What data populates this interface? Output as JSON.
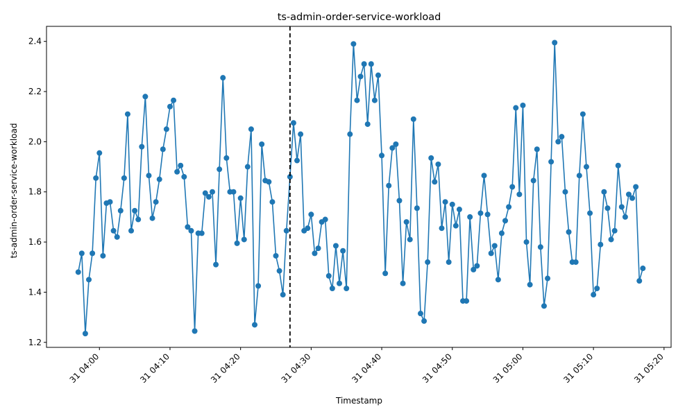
{
  "chart_data": {
    "type": "line",
    "title": "ts-admin-order-service-workload",
    "xlabel": "Timestamp",
    "ylabel": "ts-admin-order-service-workload",
    "ylim": [
      1.18,
      2.46
    ],
    "xlim": [
      "03:52:30",
      "05:21:00"
    ],
    "x_start": "03:57:00",
    "x_step_seconds": 30,
    "x_ticks": [
      {
        "time": "04:00:00",
        "label": "31 04:00"
      },
      {
        "time": "04:10:00",
        "label": "31 04:10"
      },
      {
        "time": "04:20:00",
        "label": "31 04:20"
      },
      {
        "time": "04:30:00",
        "label": "31 04:30"
      },
      {
        "time": "04:40:00",
        "label": "31 04:40"
      },
      {
        "time": "04:50:00",
        "label": "31 04:50"
      },
      {
        "time": "05:00:00",
        "label": "31 05:00"
      },
      {
        "time": "05:10:00",
        "label": "31 05:10"
      },
      {
        "time": "05:20:00",
        "label": "31 05:20"
      }
    ],
    "y_ticks": [
      1.2,
      1.4,
      1.6,
      1.8,
      2.0,
      2.2,
      2.4
    ],
    "y_tick_labels": [
      "1.2",
      "1.4",
      "1.6",
      "1.8",
      "2.0",
      "2.2",
      "2.4"
    ],
    "vline": {
      "time": "04:27:00",
      "style": "dashed",
      "color": "#000000"
    },
    "grid": false,
    "series": [
      {
        "color": "#1f77b4",
        "marker": "circle",
        "values": [
          1.48,
          1.555,
          1.235,
          1.45,
          1.555,
          1.855,
          1.955,
          1.545,
          1.755,
          1.76,
          1.645,
          1.62,
          1.725,
          1.855,
          2.11,
          1.645,
          1.725,
          1.69,
          1.98,
          2.18,
          1.865,
          1.695,
          1.76,
          1.85,
          1.97,
          2.05,
          2.14,
          2.165,
          1.88,
          1.905,
          1.86,
          1.66,
          1.645,
          1.245,
          1.635,
          1.635,
          1.795,
          1.78,
          1.8,
          1.51,
          1.89,
          2.255,
          1.935,
          1.8,
          1.8,
          1.595,
          1.775,
          1.61,
          1.9,
          2.05,
          1.27,
          1.425,
          1.99,
          1.845,
          1.84,
          1.76,
          1.545,
          1.485,
          1.39,
          1.645,
          1.86,
          2.075,
          1.925,
          2.03,
          1.645,
          1.655,
          1.71,
          1.555,
          1.575,
          1.68,
          1.69,
          1.465,
          1.415,
          1.585,
          1.435,
          1.565,
          1.415,
          2.03,
          2.39,
          2.165,
          2.26,
          2.31,
          2.07,
          2.31,
          2.165,
          2.265,
          1.945,
          1.475,
          1.825,
          1.975,
          1.99,
          1.765,
          1.435,
          1.68,
          1.61,
          2.09,
          1.735,
          1.315,
          1.285,
          1.52,
          1.935,
          1.84,
          1.91,
          1.655,
          1.76,
          1.52,
          1.75,
          1.665,
          1.73,
          1.365,
          1.365,
          1.7,
          1.49,
          1.505,
          1.715,
          1.865,
          1.71,
          1.555,
          1.585,
          1.45,
          1.635,
          1.685,
          1.74,
          1.82,
          2.135,
          1.79,
          2.145,
          1.6,
          1.43,
          1.845,
          1.97,
          1.58,
          1.345,
          1.455,
          1.92,
          2.395,
          2.0,
          2.02,
          1.8,
          1.64,
          1.52,
          1.52,
          1.865,
          2.11,
          1.9,
          1.715,
          1.39,
          1.415,
          1.59,
          1.8,
          1.735,
          1.61,
          1.645,
          1.905,
          1.74,
          1.7,
          1.79,
          1.775,
          1.82,
          1.445,
          1.495
        ]
      }
    ]
  }
}
